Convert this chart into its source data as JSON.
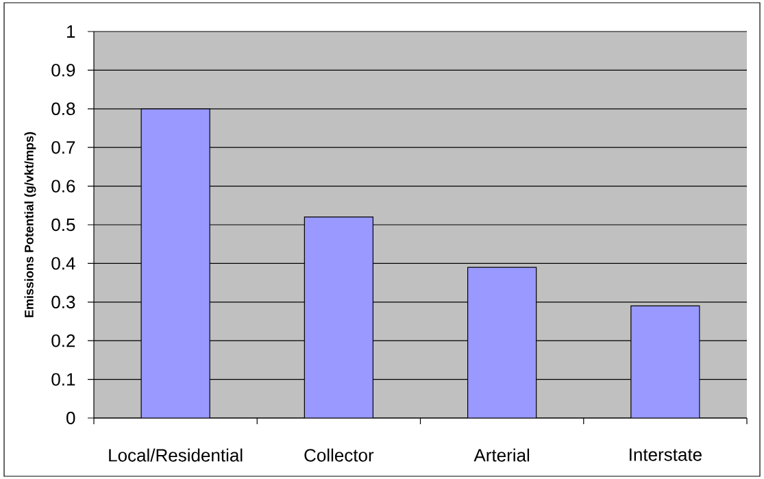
{
  "chart_data": {
    "type": "bar",
    "ylabel": "Emissions Potential (g/vkt/mps)",
    "categories": [
      "Local/Residential",
      "Collector",
      "Arterial",
      "Interstate"
    ],
    "values": [
      0.8,
      0.52,
      0.39,
      0.29
    ],
    "color": "#9999ff",
    "ylim": [
      0,
      1
    ],
    "yticks": [
      0,
      0.1,
      0.2,
      0.3,
      0.4,
      0.5,
      0.6,
      0.7,
      0.8,
      0.9,
      1
    ],
    "grid": "y"
  }
}
